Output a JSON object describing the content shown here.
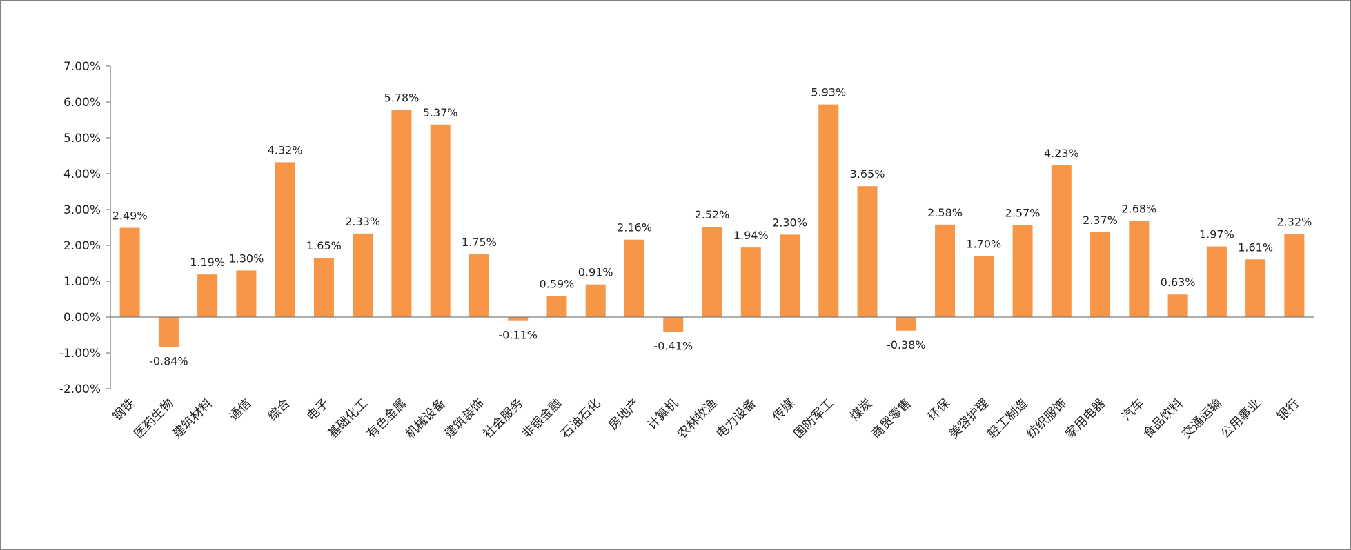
{
  "chart_data": {
    "type": "bar",
    "title": "",
    "xlabel": "",
    "ylabel": "",
    "ylim": [
      -2.0,
      7.0
    ],
    "yticks": [
      7.0,
      6.0,
      5.0,
      4.0,
      3.0,
      2.0,
      1.0,
      0.0,
      -1.0,
      -2.0
    ],
    "ytick_labels": [
      "7.00%",
      "6.00%",
      "5.00%",
      "4.00%",
      "3.00%",
      "2.00%",
      "1.00%",
      "0.00%",
      "-1.00%",
      "-2.00%"
    ],
    "grid": false,
    "legend": "none",
    "bar_color": "#F79646",
    "categories": [
      "钢铁",
      "医药生物",
      "建筑材料",
      "通信",
      "综合",
      "电子",
      "基础化工",
      "有色金属",
      "机械设备",
      "建筑装饰",
      "社会服务",
      "非银金融",
      "石油石化",
      "房地产",
      "计算机",
      "农林牧渔",
      "电力设备",
      "传媒",
      "国防军工",
      "煤炭",
      "商贸零售",
      "环保",
      "美容护理",
      "轻工制造",
      "纺织服饰",
      "家用电器",
      "汽车",
      "食品饮料",
      "交通运输",
      "公用事业",
      "银行"
    ],
    "values": [
      2.49,
      -0.84,
      1.19,
      1.3,
      4.32,
      1.65,
      2.33,
      5.78,
      5.37,
      1.75,
      -0.11,
      0.59,
      0.91,
      2.16,
      -0.41,
      2.52,
      1.94,
      2.3,
      5.93,
      3.65,
      -0.38,
      2.58,
      1.7,
      2.57,
      4.23,
      2.37,
      2.68,
      0.63,
      1.97,
      1.61,
      2.32
    ],
    "data_labels": [
      "2.49%",
      "-0.84%",
      "1.19%",
      "1.30%",
      "4.32%",
      "1.65%",
      "2.33%",
      "5.78%",
      "5.37%",
      "1.75%",
      "-0.11%",
      "0.59%",
      "0.91%",
      "2.16%",
      "-0.41%",
      "2.52%",
      "1.94%",
      "2.30%",
      "5.93%",
      "3.65%",
      "-0.38%",
      "2.58%",
      "1.70%",
      "2.57%",
      "4.23%",
      "2.37%",
      "2.68%",
      "0.63%",
      "1.97%",
      "1.61%",
      "2.32%"
    ]
  }
}
